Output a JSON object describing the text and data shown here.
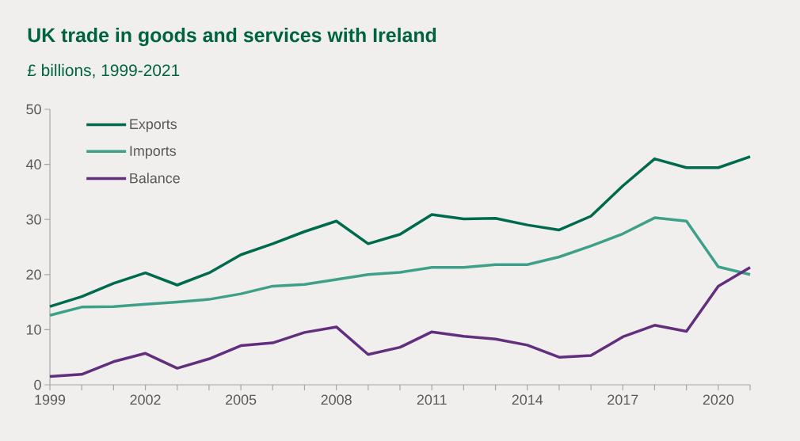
{
  "chart_data": {
    "type": "line",
    "title": "UK trade in goods and services with Ireland",
    "subtitle": "£ billions, 1999-2021",
    "x": [
      1999,
      2000,
      2001,
      2002,
      2003,
      2004,
      2005,
      2006,
      2007,
      2008,
      2009,
      2010,
      2011,
      2012,
      2013,
      2014,
      2015,
      2016,
      2017,
      2018,
      2019,
      2020,
      2021
    ],
    "series": [
      {
        "name": "Exports",
        "color": "#006a4e",
        "values": [
          14.2,
          16.0,
          18.4,
          20.3,
          18.1,
          20.3,
          23.6,
          25.6,
          27.8,
          29.7,
          25.6,
          27.3,
          30.9,
          30.1,
          30.2,
          29.0,
          28.1,
          30.6,
          36.1,
          41.0,
          39.4,
          39.4,
          41.4
        ]
      },
      {
        "name": "Imports",
        "color": "#3fa08a",
        "values": [
          12.6,
          14.1,
          14.2,
          14.6,
          15.0,
          15.5,
          16.5,
          17.9,
          18.2,
          19.1,
          20.0,
          20.4,
          21.3,
          21.3,
          21.8,
          21.8,
          23.2,
          25.2,
          27.4,
          30.3,
          29.7,
          21.4,
          20.0
        ]
      },
      {
        "name": "Balance",
        "color": "#622e7e",
        "values": [
          1.5,
          1.9,
          4.2,
          5.7,
          3.0,
          4.7,
          7.1,
          7.6,
          9.5,
          10.5,
          5.5,
          6.8,
          9.6,
          8.8,
          8.3,
          7.2,
          5.0,
          5.3,
          8.7,
          10.8,
          9.7,
          17.9,
          21.3
        ]
      }
    ],
    "xlim": [
      1999,
      2021
    ],
    "xticks": [
      1999,
      {
        "value": 2000,
        "label": null
      },
      {
        "value": 2001,
        "label": null
      },
      2002,
      {
        "value": 2003,
        "label": null
      },
      {
        "value": 2004,
        "label": null
      },
      2005,
      {
        "value": 2006,
        "label": null
      },
      {
        "value": 2007,
        "label": null
      },
      2008,
      {
        "value": 2009,
        "label": null
      },
      {
        "value": 2010,
        "label": null
      },
      2011,
      {
        "value": 2012,
        "label": null
      },
      {
        "value": 2013,
        "label": null
      },
      2014,
      {
        "value": 2015,
        "label": null
      },
      {
        "value": 2016,
        "label": null
      },
      2017,
      {
        "value": 2018,
        "label": null
      },
      {
        "value": 2019,
        "label": null
      },
      2020,
      {
        "value": 2021,
        "label": null
      }
    ],
    "ylim": [
      0,
      50
    ],
    "yticks": [
      0,
      10,
      20,
      30,
      40,
      50
    ],
    "grid": false,
    "legend": "top left",
    "marker": "none",
    "line_style": "solid"
  }
}
